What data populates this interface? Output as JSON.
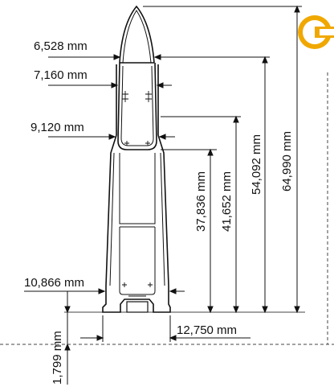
{
  "dimensions": {
    "d1": "6,528 mm",
    "d2": "7,160 mm",
    "d3": "9,120 mm",
    "d4": "10,866 mm",
    "d5": "12,750 mm",
    "d6": "1,799 mm",
    "h1": "37,836 mm",
    "h2": "41,652 mm",
    "h3": "54,092 mm",
    "h4": "64,990 mm"
  },
  "colors": {
    "line": "#111111",
    "dashed": "#444444",
    "logo": "#f0a800"
  },
  "icons": {
    "logo": "c-logo-icon"
  }
}
